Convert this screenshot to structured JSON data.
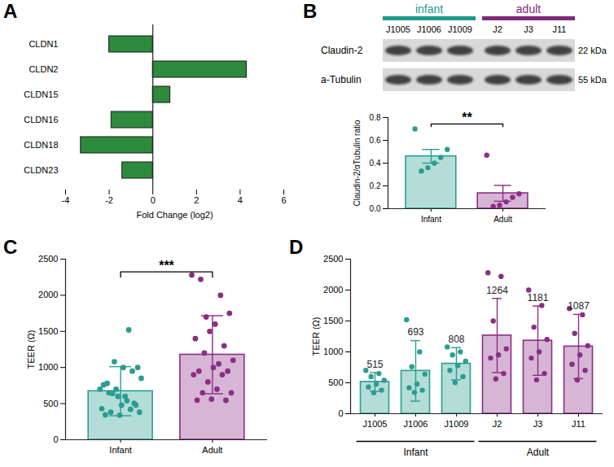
{
  "chart_data": [
    {
      "panel": "A",
      "type": "bar",
      "orientation": "horizontal",
      "categories": [
        "CLDN1",
        "CLDN2",
        "CLDN15",
        "CLDN16",
        "CLDN18",
        "CLDN23"
      ],
      "values": [
        -2.0,
        4.3,
        0.8,
        -1.9,
        -3.3,
        -1.4
      ],
      "color": "#2e8b3e",
      "xlabel": "Fold Change (log2)",
      "xlim": [
        -4,
        6
      ],
      "xticks": [
        -4,
        -2,
        0,
        2,
        4,
        6
      ]
    },
    {
      "type": "bar",
      "categories": [
        "Infant",
        "Adult"
      ],
      "values": [
        0.46,
        0.135
      ],
      "errors": [
        0.06,
        0.07
      ],
      "points": [
        [
          0.7,
          0.52,
          0.45,
          0.4,
          0.36,
          0.33
        ],
        [
          0.47,
          0.13,
          0.1,
          0.06,
          0.03,
          0.02
        ]
      ],
      "colors": [
        "#2a9d8f",
        "#8b2d86"
      ],
      "ylabel": "Claudin-2/αTubulin ratio",
      "ylim": [
        0,
        0.8
      ],
      "yticks": [
        {
          "value": 0,
          "label": "0.0"
        },
        {
          "value": 0.2,
          "label": "0.2"
        },
        {
          "value": 0.4,
          "label": "0.4"
        },
        {
          "value": 0.6,
          "label": "0.6"
        },
        {
          "value": 0.8,
          "label": "0.8"
        }
      ],
      "annotations": [
        "**"
      ]
    },
    {
      "panel": "C",
      "type": "bar",
      "categories": [
        "Infant",
        "Adult"
      ],
      "values": [
        672,
        1177
      ],
      "errors": [
        340,
        540
      ],
      "points": [
        [
          700,
          650,
          600,
          540,
          480,
          430,
          380,
          340,
          1520,
          1000,
          760,
          640,
          480,
          420,
          380,
          344,
          1080,
          1000,
          950,
          850,
          780,
          700,
          600,
          504
        ],
        [
          2280,
          2220,
          1500,
          1050,
          950,
          900,
          650,
          562,
          2000,
          1750,
          1400,
          1200,
          1000,
          900,
          650,
          548,
          1700,
          1600,
          1300,
          1100,
          950,
          800,
          700,
          546
        ]
      ],
      "colors": [
        "#2a9d8f",
        "#8b2d86"
      ],
      "ylabel": "TEER (Ω)",
      "ylim": [
        0,
        2500
      ],
      "yticks": [
        0,
        500,
        1000,
        1500,
        2000,
        2500
      ],
      "annotations": [
        "***"
      ]
    },
    {
      "panel": "D",
      "type": "bar",
      "categories": [
        "J1005",
        "J1006",
        "J1009",
        "J2",
        "J3",
        "J11"
      ],
      "values": [
        515,
        693,
        808,
        1264,
        1181,
        1087
      ],
      "data_labels": true,
      "errors": [
        150,
        490,
        260,
        600,
        560,
        520
      ],
      "points": [
        [
          700,
          650,
          600,
          540,
          480,
          430,
          380,
          340
        ],
        [
          1520,
          1000,
          760,
          640,
          480,
          420,
          380,
          344
        ],
        [
          1080,
          1000,
          950,
          850,
          780,
          700,
          600,
          504
        ],
        [
          2280,
          2220,
          1500,
          1050,
          950,
          900,
          650,
          562
        ],
        [
          2000,
          1750,
          1400,
          1200,
          1000,
          900,
          650,
          548
        ],
        [
          1700,
          1600,
          1300,
          1100,
          950,
          800,
          700,
          546
        ]
      ],
      "colors": [
        "#2a9d8f",
        "#2a9d8f",
        "#2a9d8f",
        "#8b2d86",
        "#8b2d86",
        "#8b2d86"
      ],
      "groups": [
        {
          "label": "Infant",
          "categories": [
            "J1005",
            "J1006",
            "J1009"
          ]
        },
        {
          "label": "Adult",
          "categories": [
            "J2",
            "J3",
            "J11"
          ]
        }
      ],
      "ylabel": "TEER (Ω)",
      "ylim": [
        0,
        2500
      ],
      "yticks": [
        0,
        500,
        1000,
        1500,
        2000,
        2500
      ]
    }
  ],
  "blot": {
    "panel": "B",
    "groups": [
      {
        "label": "infant",
        "color": "#1f9a8c",
        "lanes": [
          "J1005",
          "J1006",
          "J1009"
        ]
      },
      {
        "label": "adult",
        "color": "#7f2a7c",
        "lanes": [
          "J2",
          "J3",
          "J11"
        ]
      }
    ],
    "rows": [
      {
        "label": "Claudin-2",
        "size": "22 kDa"
      },
      {
        "label": "a-Tubulin",
        "size": "55 kDa"
      }
    ]
  }
}
